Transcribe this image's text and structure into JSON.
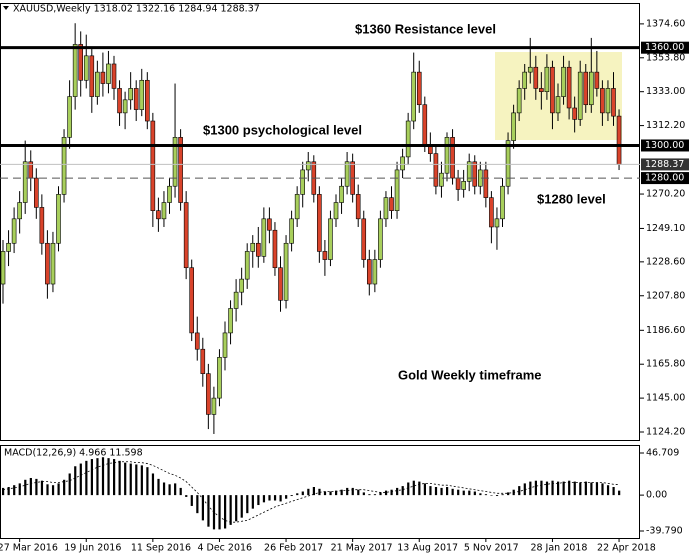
{
  "chart_data": [
    {
      "type": "candlestick",
      "title": "XAUUSD,Weekly  1318.02 1322.16 1284.94 1288.37",
      "colors": {
        "up": "#a8cf5c",
        "down": "#d9432b",
        "wick": "#000000"
      },
      "ylim": [
        1119.3,
        1386.8
      ],
      "yticks": [
        {
          "value": 1374.6,
          "label": "1374.60"
        },
        {
          "value": 1353.8,
          "label": "1353.80"
        },
        {
          "value": 1333,
          "label": "1333.00"
        },
        {
          "value": 1312.2,
          "label": "1312.20"
        },
        {
          "value": 1270.2,
          "label": "1270.20"
        },
        {
          "value": 1249.1,
          "label": "1249.10"
        },
        {
          "value": 1228.6,
          "label": "1228.60"
        },
        {
          "value": 1207.8,
          "label": "1207.80"
        },
        {
          "value": 1186.6,
          "label": "1186.60"
        },
        {
          "value": 1165.8,
          "label": "1165.80"
        },
        {
          "value": 1145,
          "label": "1145.00"
        },
        {
          "value": 1124.2,
          "label": "1124.20"
        }
      ],
      "levels": [
        {
          "value": 1360,
          "label": "1360.00",
          "style": "solid"
        },
        {
          "value": 1300,
          "label": "1300.00",
          "style": "solid"
        },
        {
          "value": 1288.37,
          "label": "1288.37",
          "style": "thin"
        },
        {
          "value": 1280,
          "label": "1280.00",
          "style": "dashed"
        }
      ],
      "annotations": [
        {
          "text": "$1360 Resistance level"
        },
        {
          "text": "$1300 psychological level"
        },
        {
          "text": "$1280 level"
        },
        {
          "text": "Gold Weekly timeframe"
        }
      ],
      "categories": [
        null,
        null,
        null,
        "27 Mar 2016",
        null,
        null,
        null,
        null,
        null,
        null,
        null,
        null,
        null,
        null,
        null,
        "19 Jun 2016",
        null,
        null,
        null,
        null,
        null,
        null,
        null,
        null,
        null,
        null,
        null,
        "11 Sep 2016",
        null,
        null,
        null,
        null,
        null,
        null,
        null,
        null,
        null,
        null,
        null,
        "4 Dec 2016",
        null,
        null,
        null,
        null,
        null,
        null,
        null,
        null,
        null,
        null,
        null,
        "26 Feb 2017",
        null,
        null,
        null,
        null,
        null,
        null,
        null,
        null,
        null,
        null,
        null,
        "21 May 2017",
        null,
        null,
        null,
        null,
        null,
        null,
        null,
        null,
        null,
        null,
        null,
        "13 Aug 2017",
        null,
        null,
        null,
        null,
        null,
        null,
        null,
        null,
        null,
        null,
        null,
        "5 Nov 2017",
        null,
        null,
        null,
        null,
        null,
        null,
        null,
        null,
        null,
        null,
        null,
        "28 Jan 2018",
        null,
        null,
        null,
        null,
        null,
        null,
        null,
        null,
        null,
        null,
        null,
        "22 Apr 2018"
      ],
      "candles": [
        [
          1215,
          1242,
          1203,
          1235
        ],
        [
          1235,
          1248,
          1226,
          1240
        ],
        [
          1240,
          1262,
          1234,
          1255
        ],
        [
          1255,
          1272,
          1246,
          1265
        ],
        [
          1265,
          1303,
          1258,
          1290
        ],
        [
          1290,
          1297,
          1272,
          1280
        ],
        [
          1280,
          1286,
          1255,
          1262
        ],
        [
          1262,
          1270,
          1233,
          1240
        ],
        [
          1240,
          1248,
          1206,
          1215
        ],
        [
          1215,
          1247,
          1210,
          1240
        ],
        [
          1240,
          1275,
          1235,
          1270
        ],
        [
          1270,
          1310,
          1265,
          1305
        ],
        [
          1305,
          1340,
          1298,
          1330
        ],
        [
          1330,
          1375,
          1322,
          1362
        ],
        [
          1362,
          1370,
          1330,
          1340
        ],
        [
          1340,
          1368,
          1335,
          1355
        ],
        [
          1355,
          1360,
          1320,
          1330
        ],
        [
          1330,
          1352,
          1325,
          1345
        ],
        [
          1345,
          1357,
          1330,
          1338
        ],
        [
          1338,
          1358,
          1332,
          1350
        ],
        [
          1350,
          1355,
          1328,
          1335
        ],
        [
          1335,
          1340,
          1312,
          1320
        ],
        [
          1320,
          1333,
          1310,
          1328
        ],
        [
          1328,
          1345,
          1322,
          1335
        ],
        [
          1335,
          1340,
          1315,
          1322
        ],
        [
          1322,
          1347,
          1318,
          1340
        ],
        [
          1340,
          1345,
          1310,
          1315
        ],
        [
          1315,
          1320,
          1250,
          1260
        ],
        [
          1260,
          1268,
          1247,
          1255
        ],
        [
          1255,
          1272,
          1250,
          1265
        ],
        [
          1265,
          1280,
          1258,
          1275
        ],
        [
          1275,
          1338,
          1268,
          1305
        ],
        [
          1305,
          1310,
          1260,
          1265
        ],
        [
          1265,
          1272,
          1218,
          1225
        ],
        [
          1225,
          1230,
          1180,
          1185
        ],
        [
          1185,
          1195,
          1168,
          1175
        ],
        [
          1175,
          1182,
          1152,
          1160
        ],
        [
          1160,
          1166,
          1126,
          1135
        ],
        [
          1135,
          1152,
          1123,
          1145
        ],
        [
          1145,
          1175,
          1140,
          1170
        ],
        [
          1170,
          1192,
          1162,
          1185
        ],
        [
          1185,
          1205,
          1178,
          1200
        ],
        [
          1200,
          1218,
          1192,
          1210
        ],
        [
          1210,
          1225,
          1202,
          1218
        ],
        [
          1218,
          1240,
          1212,
          1235
        ],
        [
          1235,
          1245,
          1225,
          1240
        ],
        [
          1240,
          1250,
          1225,
          1232
        ],
        [
          1232,
          1262,
          1228,
          1255
        ],
        [
          1255,
          1262,
          1240,
          1248
        ],
        [
          1248,
          1253,
          1220,
          1225
        ],
        [
          1225,
          1232,
          1198,
          1205
        ],
        [
          1205,
          1245,
          1200,
          1240
        ],
        [
          1240,
          1260,
          1235,
          1255
        ],
        [
          1255,
          1275,
          1250,
          1270
        ],
        [
          1270,
          1290,
          1262,
          1285
        ],
        [
          1285,
          1296,
          1278,
          1290
        ],
        [
          1290,
          1294,
          1265,
          1270
        ],
        [
          1270,
          1275,
          1228,
          1235
        ],
        [
          1235,
          1242,
          1220,
          1230
        ],
        [
          1230,
          1260,
          1226,
          1255
        ],
        [
          1255,
          1270,
          1250,
          1265
        ],
        [
          1265,
          1280,
          1258,
          1275
        ],
        [
          1275,
          1296,
          1270,
          1290
        ],
        [
          1290,
          1295,
          1265,
          1270
        ],
        [
          1270,
          1276,
          1250,
          1255
        ],
        [
          1255,
          1260,
          1225,
          1230
        ],
        [
          1230,
          1236,
          1208,
          1215
        ],
        [
          1215,
          1236,
          1210,
          1230
        ],
        [
          1230,
          1260,
          1225,
          1255
        ],
        [
          1255,
          1272,
          1250,
          1268
        ],
        [
          1268,
          1275,
          1255,
          1260
        ],
        [
          1260,
          1290,
          1255,
          1285
        ],
        [
          1285,
          1298,
          1280,
          1293
        ],
        [
          1293,
          1320,
          1288,
          1315
        ],
        [
          1315,
          1357,
          1310,
          1345
        ],
        [
          1345,
          1352,
          1320,
          1325
        ],
        [
          1325,
          1330,
          1296,
          1300
        ],
        [
          1300,
          1308,
          1290,
          1295
        ],
        [
          1295,
          1300,
          1270,
          1275
        ],
        [
          1275,
          1290,
          1268,
          1283
        ],
        [
          1283,
          1308,
          1278,
          1305
        ],
        [
          1305,
          1310,
          1276,
          1280
        ],
        [
          1280,
          1285,
          1266,
          1273
        ],
        [
          1273,
          1285,
          1268,
          1278
        ],
        [
          1278,
          1295,
          1272,
          1290
        ],
        [
          1290,
          1294,
          1270,
          1275
        ],
        [
          1275,
          1290,
          1270,
          1285
        ],
        [
          1285,
          1290,
          1262,
          1268
        ],
        [
          1268,
          1272,
          1240,
          1250
        ],
        [
          1250,
          1262,
          1236,
          1255
        ],
        [
          1255,
          1280,
          1250,
          1275
        ],
        [
          1275,
          1308,
          1270,
          1303
        ],
        [
          1303,
          1325,
          1298,
          1320
        ],
        [
          1320,
          1340,
          1315,
          1335
        ],
        [
          1335,
          1350,
          1328,
          1345
        ],
        [
          1345,
          1366,
          1338,
          1348
        ],
        [
          1348,
          1355,
          1328,
          1335
        ],
        [
          1335,
          1345,
          1322,
          1333
        ],
        [
          1333,
          1356,
          1328,
          1348
        ],
        [
          1348,
          1352,
          1310,
          1320
        ],
        [
          1320,
          1338,
          1315,
          1330
        ],
        [
          1330,
          1355,
          1325,
          1348
        ],
        [
          1348,
          1352,
          1316,
          1323
        ],
        [
          1323,
          1330,
          1308,
          1316
        ],
        [
          1316,
          1352,
          1312,
          1345
        ],
        [
          1345,
          1350,
          1320,
          1325
        ],
        [
          1325,
          1366,
          1320,
          1345
        ],
        [
          1345,
          1358,
          1330,
          1335
        ],
        [
          1335,
          1340,
          1312,
          1320
        ],
        [
          1320,
          1340,
          1315,
          1335
        ],
        [
          1335,
          1345,
          1312,
          1318
        ],
        [
          1318.02,
          1322.16,
          1284.94,
          1288.37
        ]
      ]
    },
    {
      "type": "macd",
      "title": "MACD(12,26,9) 4.966 11.598",
      "color": "#000000",
      "ylim": [
        -47.55,
        54.47
      ],
      "yticks": [
        46.709,
        {
          "value": 0,
          "label": "0.00"
        },
        {
          "value": -39.79,
          "label": "-39.790"
        }
      ],
      "histogram": [
        8,
        9,
        11,
        13,
        17,
        19,
        18,
        16,
        12,
        11,
        13,
        17,
        24,
        32,
        35,
        38,
        40,
        41,
        42,
        41,
        40,
        38,
        36,
        35,
        34,
        33,
        31,
        24,
        18,
        14,
        12,
        13,
        8,
        -2,
        -12,
        -20,
        -28,
        -35,
        -38,
        -38,
        -37,
        -33,
        -29,
        -25,
        -20,
        -15,
        -11,
        -8,
        -6,
        -6,
        -7,
        -4,
        -1,
        2,
        4,
        7,
        9,
        7,
        4,
        4,
        5,
        6,
        8,
        8,
        6,
        3,
        1,
        1,
        3,
        5,
        6,
        8,
        10,
        14,
        16,
        15,
        13,
        10,
        9,
        8,
        9,
        7,
        6,
        5,
        5,
        4,
        2,
        1,
        0,
        -1,
        1,
        3,
        6,
        10,
        13,
        15,
        16,
        16,
        15,
        16,
        15,
        15,
        16,
        15,
        14,
        15,
        14,
        14,
        13,
        11,
        9,
        4.966
      ],
      "signal": [
        6,
        7,
        8,
        9,
        11,
        13,
        14,
        15,
        15,
        14,
        14,
        15,
        16,
        19,
        22,
        25,
        28,
        31,
        33,
        35,
        36,
        37,
        37,
        37,
        36,
        36,
        35,
        33,
        30,
        27,
        24,
        22,
        19,
        15,
        9,
        3,
        -4,
        -12,
        -19,
        -24,
        -28,
        -30,
        -30,
        -29,
        -28,
        -25,
        -22,
        -19,
        -16,
        -13,
        -11,
        -9,
        -7,
        -5,
        -3,
        -1,
        1,
        3,
        4,
        4,
        4,
        5,
        5,
        6,
        6,
        6,
        5,
        4,
        3,
        3,
        4,
        5,
        6,
        8,
        10,
        12,
        13,
        13,
        12,
        11,
        11,
        10,
        9,
        8,
        7,
        6,
        5,
        4,
        3,
        2,
        2,
        2,
        3,
        4,
        6,
        8,
        10,
        11,
        12,
        13,
        13,
        14,
        14,
        14,
        14,
        14,
        14,
        14,
        14,
        13,
        12,
        11.598
      ]
    }
  ]
}
